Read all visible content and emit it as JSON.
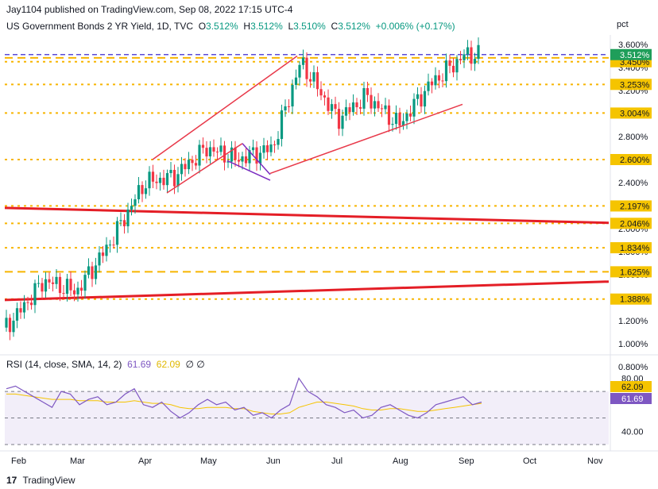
{
  "header": {
    "publisher_line": "Jay1104 published on TradingView.com, Sep 08, 2022 17:15 UTC-4"
  },
  "legend": {
    "symbol": "US Government Bonds 2 YR Yield, 1D, TVC",
    "o_label": "O",
    "o": "3.512%",
    "h_label": "H",
    "h": "3.512%",
    "l_label": "L",
    "l": "3.510%",
    "c_label": "C",
    "c": "3.512%",
    "change": "+0.006% (+0.17%)"
  },
  "rsi_legend": {
    "text": "RSI (14, close, SMA, 14, 2)",
    "rsi": "61.69",
    "sma": "62.09",
    "extra": "∅ ∅"
  },
  "footer": {
    "brand": "TradingView"
  },
  "colors": {
    "up": "#089981",
    "down": "#f23645",
    "level": "#f7b500",
    "trend": "#e41e26",
    "channel": "#e8394a",
    "flag": "#7b2bc0",
    "last": "#1f9e5a",
    "sma_label": "#f5c400",
    "rsi": "#7e57c2"
  },
  "chart_data": [
    {
      "type": "candlestick",
      "unit_label": "pct",
      "y_ticks": [
        "3.600%",
        "3.400%",
        "3.200%",
        "3.000%",
        "2.800%",
        "2.600%",
        "2.400%",
        "2.200%",
        "2.000%",
        "1.800%",
        "1.600%",
        "1.400%",
        "1.200%",
        "1.000%",
        "0.800%"
      ],
      "x_ticks": [
        "Feb",
        "Mar",
        "Apr",
        "May",
        "Jun",
        "Jul",
        "Aug",
        "Sep",
        "Oct",
        "Nov"
      ],
      "ylim": [
        0.8,
        3.6
      ],
      "last_price": "3.512%",
      "horizontal_levels": [
        "3.484%",
        "3.450%",
        "3.253%",
        "3.004%",
        "2.600%",
        "2.197%",
        "2.046%",
        "1.834%",
        "1.625%",
        "1.388%"
      ],
      "trendlines": [
        {
          "from": [
            "Jan 1",
            "2.18%"
          ],
          "to": [
            "Oct 30",
            "2.05%"
          ]
        },
        {
          "from": [
            "Jan 1",
            "1.38%"
          ],
          "to": [
            "Oct 30",
            "1.54%"
          ]
        }
      ],
      "approx_closes": [
        {
          "x": "Jan",
          "y": 1.14
        },
        {
          "x": "Feb",
          "y": 1.24
        },
        {
          "x": "Feb 15",
          "y": 1.55
        },
        {
          "x": "Mar",
          "y": 1.45
        },
        {
          "x": "Mar 15",
          "y": 1.85
        },
        {
          "x": "Apr",
          "y": 2.4
        },
        {
          "x": "Apr 15",
          "y": 2.45
        },
        {
          "x": "May",
          "y": 2.7
        },
        {
          "x": "May 15",
          "y": 2.6
        },
        {
          "x": "Jun",
          "y": 2.7
        },
        {
          "x": "Jun 14",
          "y": 3.45
        },
        {
          "x": "Jul",
          "y": 2.95
        },
        {
          "x": "Jul 15",
          "y": 3.15
        },
        {
          "x": "Aug",
          "y": 2.9
        },
        {
          "x": "Aug 15",
          "y": 3.25
        },
        {
          "x": "Sep",
          "y": 3.51
        }
      ]
    },
    {
      "type": "line",
      "title": "RSI",
      "y_ticks": [
        "80.00",
        "40.00"
      ],
      "ylim": [
        30,
        85
      ],
      "rsi_last": "61.69",
      "sma_last": "62.09",
      "series": [
        {
          "values": [
            72,
            74,
            70,
            66,
            62,
            58,
            70,
            68,
            60,
            64,
            66,
            60,
            62,
            68,
            72,
            60,
            58,
            62,
            55,
            50,
            54,
            60,
            64,
            60,
            62,
            56,
            58,
            52,
            54,
            50,
            56,
            60,
            80,
            70,
            66,
            60,
            58,
            54,
            56,
            50,
            52,
            58,
            60,
            56,
            52,
            50,
            54,
            60,
            62,
            64,
            66,
            60,
            62
          ]
        },
        {
          "values": [
            68,
            68,
            67,
            66,
            65,
            64,
            64,
            64,
            63,
            63,
            63,
            62,
            62,
            62,
            63,
            62,
            61,
            61,
            60,
            58,
            57,
            57,
            58,
            58,
            58,
            57,
            57,
            55,
            54,
            53,
            53,
            54,
            58,
            60,
            62,
            62,
            61,
            60,
            59,
            57,
            56,
            56,
            57,
            57,
            56,
            55,
            55,
            56,
            57,
            58,
            59,
            60,
            61
          ]
        }
      ]
    }
  ]
}
